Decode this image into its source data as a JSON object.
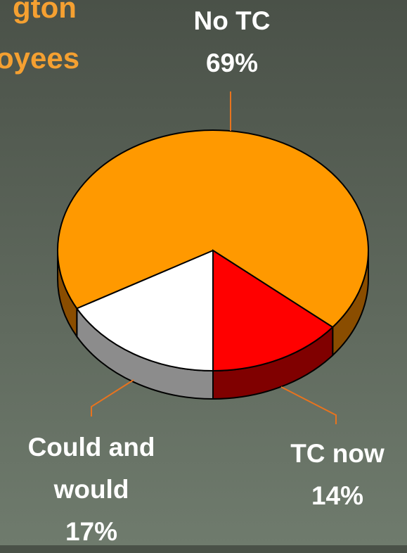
{
  "chart_data": {
    "type": "pie",
    "title_lines": [
      "gton",
      "oyees"
    ],
    "categories": [
      "Could and would",
      "No TC",
      "TC now"
    ],
    "values": [
      17,
      69,
      14
    ],
    "value_labels": [
      "17%",
      "69%",
      "14%"
    ],
    "colors": [
      "#ffffff",
      "#ff9900",
      "#ff0000"
    ],
    "side_colors": [
      "#8c8c8c",
      "#8a4d00",
      "#800000"
    ],
    "leader_color": "#e8731e"
  }
}
